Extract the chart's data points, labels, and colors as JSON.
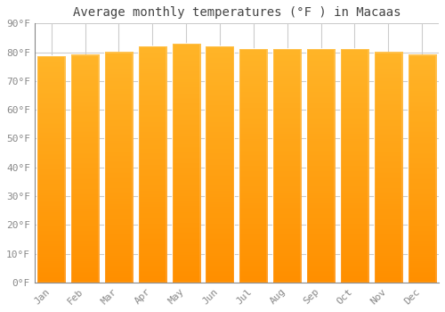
{
  "title": "Average monthly temperatures (°F ) in Macaas",
  "months": [
    "Jan",
    "Feb",
    "Mar",
    "Apr",
    "May",
    "Jun",
    "Jul",
    "Aug",
    "Sep",
    "Oct",
    "Nov",
    "Dec"
  ],
  "values": [
    78.5,
    79.0,
    80.0,
    82.0,
    83.0,
    82.0,
    81.0,
    81.0,
    81.0,
    81.0,
    80.0,
    79.0
  ],
  "bar_color": "#FFA500",
  "bar_gradient_top": "#FFB830",
  "bar_gradient_bottom": "#FF8C00",
  "bar_edge_color": "#FFFFFF",
  "background_color": "#FFFFFF",
  "plot_bg_color": "#FFFFFF",
  "grid_color": "#CCCCCC",
  "title_color": "#444444",
  "tick_color": "#888888",
  "ylim": [
    0,
    90
  ],
  "ytick_step": 10,
  "title_fontsize": 10,
  "tick_fontsize": 8,
  "font_family": "monospace"
}
